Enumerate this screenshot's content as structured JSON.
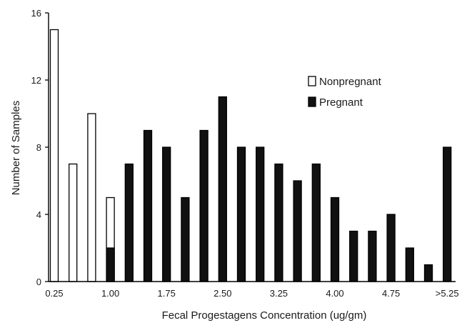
{
  "chart_data": {
    "type": "bar",
    "xlabel": "Fecal Progestagens Concentration (ug/gm)",
    "ylabel": "Number of Samples",
    "ylim": [
      0,
      16
    ],
    "yticks": [
      "0",
      "4",
      "8",
      "12",
      "16"
    ],
    "xtick_labels": [
      "0.25",
      "1.00",
      "1.75",
      "2.50",
      "3.25",
      "4.00",
      "4.75",
      ">5.25"
    ],
    "xtick_bins": [
      0,
      3,
      6,
      9,
      12,
      15,
      18,
      21
    ],
    "bins": 22,
    "legend_position": "top-right",
    "series": [
      {
        "name": "Nonpregnant",
        "fill": "#ffffff",
        "stroke": "#000000",
        "values": [
          15,
          7,
          10,
          5,
          0,
          0,
          0,
          0,
          0,
          0,
          0,
          0,
          0,
          0,
          0,
          0,
          0,
          0,
          0,
          0,
          0,
          0
        ]
      },
      {
        "name": "Pregnant",
        "fill": "#111111",
        "stroke": "#000000",
        "values": [
          0,
          0,
          0,
          2,
          7,
          9,
          8,
          5,
          9,
          11,
          8,
          8,
          7,
          6,
          7,
          5,
          3,
          3,
          4,
          2,
          1,
          8
        ]
      }
    ]
  }
}
